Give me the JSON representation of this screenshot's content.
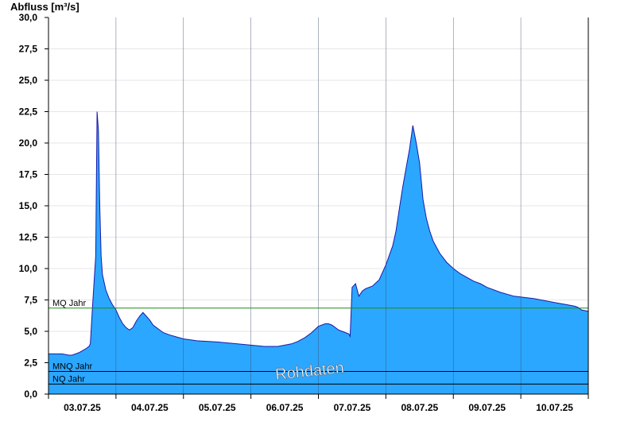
{
  "chart_data": {
    "type": "area",
    "ylabel": "Abfluss [m³/s]",
    "ylim": [
      0,
      30
    ],
    "yticks": [
      0,
      2.5,
      5,
      7.5,
      10,
      12.5,
      15,
      17.5,
      20,
      22.5,
      25,
      27.5,
      30
    ],
    "ytick_labels": [
      "0,0",
      "2,5",
      "5,0",
      "7,5",
      "10,0",
      "12,5",
      "15,0",
      "17,5",
      "20,0",
      "22,5",
      "25,0",
      "27,5",
      "30,0"
    ],
    "xlim_days": [
      0,
      8
    ],
    "xtick_labels": [
      "03.07.25",
      "04.07.25",
      "05.07.25",
      "06.07.25",
      "07.07.25",
      "08.07.25",
      "09.07.25",
      "10.07.25"
    ],
    "grid": true,
    "fill_color": "#2ba7ff",
    "line_color": "#1a1aa8",
    "series": [
      {
        "x": [
          0,
          0.2,
          0.3,
          0.35,
          0.45,
          0.55,
          0.6,
          0.62,
          0.65,
          0.7,
          0.72,
          0.74,
          0.76,
          0.78,
          0.8,
          0.85,
          0.9,
          0.95,
          1.0,
          1.05,
          1.1,
          1.15,
          1.2,
          1.25,
          1.3,
          1.35,
          1.4,
          1.45,
          1.5,
          1.55,
          1.6,
          1.65,
          1.7,
          1.8,
          1.9,
          2.0,
          2.2,
          2.5,
          2.8,
          3.0,
          3.2,
          3.4,
          3.5,
          3.6,
          3.7,
          3.8,
          3.9,
          4.0,
          4.1,
          4.15,
          4.2,
          4.3,
          4.4,
          4.45,
          4.47,
          4.5,
          4.55,
          4.6,
          4.65,
          4.7,
          4.8,
          4.9,
          5.0,
          5.1,
          5.15,
          5.2,
          5.25,
          5.3,
          5.35,
          5.4,
          5.45,
          5.5,
          5.55,
          5.6,
          5.65,
          5.7,
          5.75,
          5.8,
          5.9,
          6.0,
          6.1,
          6.2,
          6.3,
          6.4,
          6.5,
          6.7,
          6.9,
          7.2,
          7.5,
          7.7,
          7.8,
          7.85,
          7.9,
          8.0
        ],
        "values": [
          3.2,
          3.2,
          3.1,
          3.1,
          3.3,
          3.6,
          3.8,
          4.0,
          6.8,
          11.0,
          22.5,
          21.0,
          15.0,
          11.0,
          9.5,
          8.3,
          7.6,
          7.1,
          6.7,
          6.1,
          5.6,
          5.3,
          5.1,
          5.3,
          5.8,
          6.2,
          6.5,
          6.2,
          5.9,
          5.5,
          5.3,
          5.1,
          4.9,
          4.7,
          4.55,
          4.4,
          4.25,
          4.15,
          4.0,
          3.9,
          3.8,
          3.8,
          3.9,
          4.0,
          4.2,
          4.5,
          4.9,
          5.4,
          5.6,
          5.6,
          5.5,
          5.1,
          4.9,
          4.8,
          4.6,
          8.5,
          8.8,
          7.8,
          8.2,
          8.4,
          8.6,
          9.1,
          10.3,
          11.8,
          13.0,
          14.8,
          16.5,
          18.0,
          19.5,
          21.4,
          20.0,
          18.4,
          15.5,
          14.0,
          13.0,
          12.2,
          11.7,
          11.2,
          10.5,
          10.0,
          9.6,
          9.3,
          9.0,
          8.8,
          8.5,
          8.1,
          7.8,
          7.6,
          7.3,
          7.1,
          7.0,
          6.9,
          6.7,
          6.6
        ]
      }
    ],
    "reference_lines": [
      {
        "label": "MQ Jahr",
        "value": 6.85,
        "color": "#1f8a1f"
      },
      {
        "label": "MNQ Jahr",
        "value": 1.8,
        "color": "#000000"
      },
      {
        "label": "NQ Jahr",
        "value": 0.8,
        "color": "#000000"
      }
    ],
    "watermark": "Rohdaten"
  }
}
